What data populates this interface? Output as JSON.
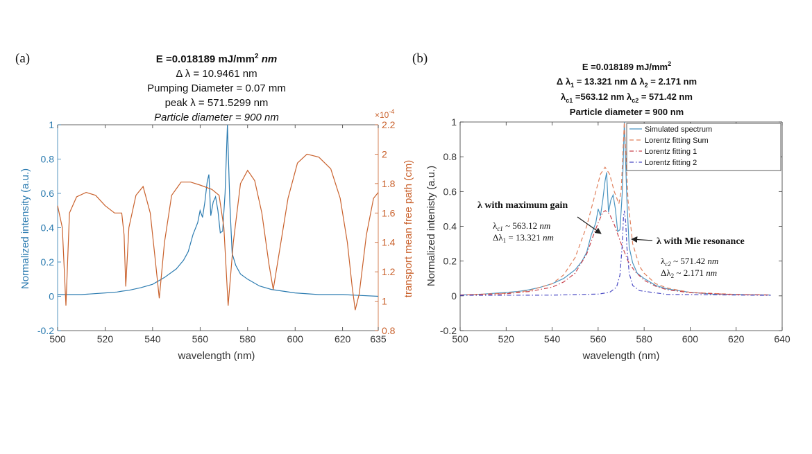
{
  "panel_labels": {
    "a": "(a)",
    "b": "(b)"
  },
  "chart_data": [
    {
      "type": "line",
      "panel": "(a)",
      "title_lines": {
        "e_prefix": "E =0.018189 mJ/mm",
        "e_sup": "2",
        "e_suffix": " nm",
        "delta": "Δ λ = 10.9461 nm",
        "pumping": "Pumping Diameter = 0.07 mm",
        "peak": "peak λ = 571.5299  nm",
        "particle": "Particle diameter = 900 nm"
      },
      "xlabel": "wavelength (nm)",
      "ylabel_left": "Normalized intensity (a.u.)",
      "ylabel_right": "transport mean free path (cm)",
      "right_axis_multiplier": "×10",
      "right_axis_exponent": "-4",
      "xlim": [
        500,
        635
      ],
      "ylim_left": [
        -0.2,
        1
      ],
      "ylim_right": [
        0.8,
        2.2
      ],
      "xticks": [
        "500",
        "520",
        "540",
        "560",
        "580",
        "600",
        "620",
        "635"
      ],
      "yticks_left": [
        "-0.2",
        "0",
        "0.2",
        "0.4",
        "0.6",
        "0.8",
        "1"
      ],
      "yticks_right": [
        "0.8",
        "1",
        "1.2",
        "1.4",
        "1.6",
        "1.8",
        "2",
        "2.2"
      ],
      "grid": false,
      "colors": {
        "left": "#2b7bb0",
        "right": "#c9612c"
      },
      "series": [
        {
          "axis": "left",
          "x": [
            500,
            505,
            510,
            515,
            520,
            525,
            527,
            530,
            535,
            540,
            545,
            550,
            553,
            555,
            557,
            559,
            560,
            561,
            562,
            563,
            563.7,
            564.5,
            565.5,
            566.5,
            567.5,
            568.5,
            569.5,
            570.5,
            571.5,
            572.5,
            573.5,
            575,
            577,
            580,
            585,
            590,
            595,
            600,
            610,
            620,
            635
          ],
          "y": [
            0.01,
            0.01,
            0.01,
            0.015,
            0.02,
            0.025,
            0.03,
            0.035,
            0.05,
            0.07,
            0.11,
            0.16,
            0.21,
            0.26,
            0.36,
            0.43,
            0.5,
            0.46,
            0.55,
            0.67,
            0.71,
            0.47,
            0.55,
            0.58,
            0.5,
            0.37,
            0.38,
            0.6,
            1.0,
            0.55,
            0.25,
            0.18,
            0.13,
            0.1,
            0.06,
            0.04,
            0.03,
            0.02,
            0.01,
            0.01,
            0.0
          ]
        },
        {
          "axis": "right",
          "x": [
            500,
            502,
            503.5,
            505,
            508,
            512,
            516,
            520,
            524,
            527,
            528,
            528.7,
            530,
            533,
            536,
            539,
            541,
            542.8,
            545,
            548,
            552,
            556,
            560,
            565,
            568,
            570,
            571.8,
            574,
            577,
            580,
            583,
            586,
            589,
            590.8,
            593,
            597,
            601,
            605,
            610,
            615,
            619,
            622,
            624,
            625.3,
            627,
            630,
            633,
            635
          ],
          "y": [
            1.65,
            1.5,
            0.97,
            1.6,
            1.71,
            1.74,
            1.72,
            1.65,
            1.6,
            1.6,
            1.45,
            1.1,
            1.5,
            1.72,
            1.78,
            1.6,
            1.3,
            1.02,
            1.4,
            1.72,
            1.81,
            1.81,
            1.79,
            1.76,
            1.72,
            1.5,
            0.97,
            1.4,
            1.8,
            1.89,
            1.82,
            1.6,
            1.25,
            1.08,
            1.3,
            1.7,
            1.94,
            2.0,
            1.98,
            1.9,
            1.7,
            1.4,
            1.1,
            0.94,
            1.05,
            1.45,
            1.7,
            1.74
          ]
        }
      ]
    },
    {
      "type": "line",
      "panel": "(b)",
      "title_lines": {
        "e_prefix": "E =0.018189 mJ/mm",
        "e_sup": "2",
        "d1_pre": "Δ λ",
        "d1_sub": "1",
        "d1_mid": " = 13.321 nm  Δ λ",
        "d2_sub": "2",
        "d2_post": " = 2.171 nm",
        "c1_pre": "λ",
        "c1_sub": "c1",
        "c1_mid": " =563.12 nm λ",
        "c2_sub": "c2",
        "c2_post": " = 571.42 nm",
        "particle": "Particle diameter = 900 nm"
      },
      "xlabel": "wavelength (nm)",
      "ylabel": "Normalized intenisty (a.u.)",
      "xlim": [
        500,
        640
      ],
      "ylim": [
        -0.2,
        1
      ],
      "xticks": [
        "500",
        "520",
        "540",
        "560",
        "580",
        "600",
        "620",
        "640"
      ],
      "yticks": [
        "-0.2",
        "0",
        "0.2",
        "0.4",
        "0.6",
        "0.8",
        "1"
      ],
      "grid": false,
      "legend": {
        "position": "top-right"
      },
      "series": [
        {
          "name": "Simulated spectrum",
          "color": "#4a94c0",
          "style": "solid",
          "x": [
            500,
            510,
            520,
            525,
            530,
            535,
            540,
            545,
            550,
            553,
            555,
            557,
            559,
            560,
            561,
            562,
            563,
            563.7,
            564.5,
            565.5,
            566.5,
            567.5,
            568.5,
            569.5,
            570.5,
            571.4,
            572.5,
            573.5,
            575,
            577,
            580,
            585,
            590,
            600,
            610,
            620,
            635
          ],
          "y": [
            0.005,
            0.01,
            0.02,
            0.025,
            0.035,
            0.05,
            0.07,
            0.1,
            0.15,
            0.2,
            0.25,
            0.35,
            0.42,
            0.5,
            0.46,
            0.55,
            0.66,
            0.71,
            0.48,
            0.55,
            0.58,
            0.5,
            0.37,
            0.38,
            0.6,
            1.0,
            0.55,
            0.28,
            0.19,
            0.13,
            0.1,
            0.06,
            0.04,
            0.02,
            0.01,
            0.008,
            0.005
          ]
        },
        {
          "name": "Lorentz fitting Sum",
          "color": "#e0805c",
          "style": "dashed",
          "x": [
            500,
            520,
            530,
            540,
            545,
            550,
            555,
            558,
            561,
            563,
            565,
            567,
            569,
            570,
            571.4,
            573,
            575,
            578,
            580,
            585,
            590,
            600,
            620,
            635
          ],
          "y": [
            0.005,
            0.015,
            0.03,
            0.07,
            0.12,
            0.22,
            0.4,
            0.55,
            0.7,
            0.74,
            0.7,
            0.6,
            0.53,
            0.6,
            1.0,
            0.55,
            0.3,
            0.17,
            0.13,
            0.07,
            0.045,
            0.02,
            0.008,
            0.005
          ]
        },
        {
          "name": "Lorentz fitting 1",
          "color": "#c8414c",
          "style": "dashdot",
          "x": [
            500,
            520,
            530,
            540,
            545,
            550,
            555,
            558,
            560,
            562,
            563.12,
            565,
            567,
            570,
            573,
            576,
            580,
            585,
            590,
            600,
            620,
            635
          ],
          "y": [
            0.005,
            0.012,
            0.025,
            0.05,
            0.08,
            0.13,
            0.24,
            0.35,
            0.42,
            0.48,
            0.49,
            0.47,
            0.41,
            0.3,
            0.2,
            0.14,
            0.09,
            0.055,
            0.035,
            0.018,
            0.007,
            0.005
          ]
        },
        {
          "name": "Lorentz fitting 2",
          "color": "#4b4bc4",
          "style": "dashdot",
          "x": [
            500,
            540,
            560,
            565,
            568,
            569.5,
            570.5,
            571,
            571.42,
            572,
            572.5,
            573.5,
            575,
            578,
            590,
            635
          ],
          "y": [
            0.003,
            0.004,
            0.01,
            0.02,
            0.05,
            0.12,
            0.3,
            0.45,
            0.49,
            0.42,
            0.28,
            0.13,
            0.06,
            0.03,
            0.008,
            0.003
          ]
        }
      ],
      "annotations": {
        "gain_label": "λ with maximum gain",
        "c1_pre": "λ",
        "c1_sub": "c1",
        "c1_post": " ~ 563.12 ",
        "c1_unit": "nm",
        "d1_pre": "Δλ",
        "d1_sub": "1",
        "d1_post": " = 13.321 ",
        "d1_unit": "nm",
        "mie_label": "λ with Mie resonance",
        "c2_pre": "λ",
        "c2_sub": "c2",
        "c2_post": " ~ 571.42 ",
        "c2_unit": "nm",
        "d2_pre": "Δλ",
        "d2_sub": "2",
        "d2_post": " ~ 2.171 ",
        "d2_unit": "nm"
      }
    }
  ]
}
